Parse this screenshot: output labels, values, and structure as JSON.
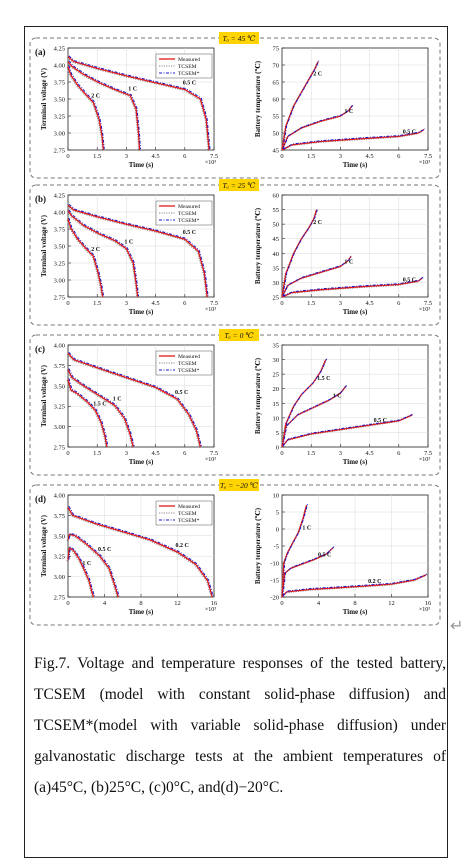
{
  "figure": {
    "caption": "Fig.7.  Voltage and temperature responses of the tested battery, TCSEM (model with constant solid-phase diffusion) and TCSEM*(model with variable solid-phase diffusion) under galvanostatic discharge tests at the ambient temperatures of (a)45°C, (b)25°C, (c)0°C, and(d)−20°C.",
    "paragraph_mark": "↵"
  },
  "colors": {
    "measured": "#e01818",
    "tcsem": "#8a8a8a",
    "tcsem_star": "#1a1acc",
    "title_bg": "#ffd400",
    "panel_border": "#777777"
  },
  "chart_data": [
    {
      "panel": "(a)",
      "title": "Tₐ = 45 ℃",
      "ambient": "45 ℃",
      "legend": [
        "Measured",
        "TCSEM",
        "TCSEM*"
      ],
      "voltage": {
        "type": "line",
        "xlabel": "Time (s)",
        "ylabel": "Terminal voltage (V)",
        "x_multiplier": "×10³",
        "xlim": [
          0,
          7.5
        ],
        "ylim": [
          2.75,
          4.25
        ],
        "xticks": [
          0,
          1.5,
          3,
          4.5,
          6,
          7.5
        ],
        "yticks": [
          2.75,
          3.0,
          3.25,
          3.5,
          3.75,
          4.0,
          4.25
        ],
        "series": [
          {
            "label": "0.5 C",
            "x": [
              0,
              0.3,
              1.5,
              3,
              4.5,
              6,
              6.8,
              7.1,
              7.25
            ],
            "y": [
              4.12,
              4.05,
              3.95,
              3.84,
              3.74,
              3.64,
              3.5,
              3.2,
              2.75
            ]
          },
          {
            "label": "1 C",
            "x": [
              0,
              0.2,
              0.8,
              1.6,
              2.4,
              3.2,
              3.5,
              3.62,
              3.68
            ],
            "y": [
              4.05,
              3.98,
              3.86,
              3.74,
              3.64,
              3.55,
              3.35,
              3.0,
              2.75
            ]
          },
          {
            "label": "2 C",
            "x": [
              0,
              0.15,
              0.5,
              0.9,
              1.3,
              1.6,
              1.75,
              1.82
            ],
            "y": [
              3.98,
              3.85,
              3.7,
              3.57,
              3.45,
              3.2,
              2.95,
              2.75
            ]
          }
        ]
      },
      "temperature": {
        "type": "line",
        "xlabel": "Time (s)",
        "ylabel": "Battery temperature (℃)",
        "x_multiplier": "×10³",
        "xlim": [
          0,
          7.5
        ],
        "ylim": [
          45,
          75
        ],
        "xticks": [
          0,
          1.5,
          3,
          4.5,
          6,
          7.5
        ],
        "yticks": [
          45,
          50,
          55,
          60,
          65,
          70,
          75
        ],
        "series": [
          {
            "label": "2 C",
            "x": [
              0,
              0.2,
              0.6,
              1.0,
              1.4,
              1.7,
              1.85
            ],
            "y": [
              45,
              52,
              58,
              62,
              66,
              69,
              71
            ]
          },
          {
            "label": "1 C",
            "x": [
              0,
              0.3,
              1.0,
              2.0,
              3.0,
              3.4,
              3.6
            ],
            "y": [
              45,
              49,
              51.5,
              53.5,
              55,
              56.5,
              58
            ]
          },
          {
            "label": "0.5 C",
            "x": [
              0,
              0.5,
              2,
              4,
              6,
              7,
              7.3
            ],
            "y": [
              45,
              46.5,
              47.5,
              48.3,
              49,
              50,
              51
            ]
          }
        ]
      }
    },
    {
      "panel": "(b)",
      "title": "Tₐ = 25 ℃",
      "ambient": "25 ℃",
      "legend": [
        "Measured",
        "TCSEM",
        "TCSEM*"
      ],
      "voltage": {
        "type": "line",
        "xlabel": "Time (s)",
        "ylabel": "Terminal voltage (V)",
        "x_multiplier": "×10³",
        "xlim": [
          0,
          7.5
        ],
        "ylim": [
          2.75,
          4.25
        ],
        "xticks": [
          0,
          1.5,
          3,
          4.5,
          6,
          7.5
        ],
        "yticks": [
          2.75,
          3.0,
          3.25,
          3.5,
          3.75,
          4.0,
          4.25
        ],
        "series": [
          {
            "label": "0.5 C",
            "x": [
              0,
              0.3,
              1.5,
              3,
              4.5,
              6,
              6.7,
              7.0,
              7.15
            ],
            "y": [
              4.1,
              4.03,
              3.93,
              3.82,
              3.72,
              3.6,
              3.42,
              3.1,
              2.75
            ]
          },
          {
            "label": "1 C",
            "x": [
              0,
              0.2,
              0.8,
              1.6,
              2.4,
              3.0,
              3.35,
              3.5,
              3.58
            ],
            "y": [
              4.02,
              3.94,
              3.8,
              3.68,
              3.58,
              3.46,
              3.25,
              2.95,
              2.75
            ]
          },
          {
            "label": "2 C",
            "x": [
              0,
              0.15,
              0.5,
              0.9,
              1.3,
              1.55,
              1.7,
              1.78
            ],
            "y": [
              3.9,
              3.76,
              3.6,
              3.47,
              3.35,
              3.1,
              2.9,
              2.75
            ]
          }
        ]
      },
      "temperature": {
        "type": "line",
        "xlabel": "Time (s)",
        "ylabel": "Battery temperature (℃)",
        "x_multiplier": "×10³",
        "xlim": [
          0,
          7.5
        ],
        "ylim": [
          25,
          60
        ],
        "xticks": [
          0,
          1.5,
          3,
          4.5,
          6,
          7.5
        ],
        "yticks": [
          25,
          30,
          35,
          40,
          45,
          50,
          55,
          60
        ],
        "series": [
          {
            "label": "2 C",
            "x": [
              0,
              0.2,
              0.6,
              1.0,
              1.4,
              1.65,
              1.78
            ],
            "y": [
              25,
              33,
              40,
              45,
              49,
              52,
              55
            ]
          },
          {
            "label": "1 C",
            "x": [
              0,
              0.3,
              1.0,
              2.0,
              3.0,
              3.4,
              3.55
            ],
            "y": [
              25,
              29,
              31.5,
              33.5,
              35.5,
              37.5,
              39
            ]
          },
          {
            "label": "0.5 C",
            "x": [
              0,
              0.5,
              2,
              4,
              6,
              7,
              7.2
            ],
            "y": [
              25,
              26.5,
              27.5,
              28.5,
              29.3,
              30.5,
              31.5
            ]
          }
        ]
      }
    },
    {
      "panel": "(c)",
      "title": "Tₐ = 0 ℃",
      "ambient": "0 ℃",
      "legend": [
        "Measured",
        "TCSEM",
        "TCSEM*"
      ],
      "voltage": {
        "type": "line",
        "xlabel": "Time (s)",
        "ylabel": "Terminal voltage (V)",
        "x_multiplier": "×10³",
        "xlim": [
          0,
          7.5
        ],
        "ylim": [
          2.75,
          4.0
        ],
        "xticks": [
          0,
          1.5,
          3,
          4.5,
          6,
          7.5
        ],
        "yticks": [
          2.75,
          3.0,
          3.25,
          3.5,
          3.75,
          4.0
        ],
        "series": [
          {
            "label": "0.5 C",
            "x": [
              0,
              0.3,
              1.5,
              3,
              4.5,
              5.6,
              6.2,
              6.6,
              6.8
            ],
            "y": [
              3.9,
              3.82,
              3.72,
              3.6,
              3.48,
              3.34,
              3.15,
              2.95,
              2.75
            ]
          },
          {
            "label": "1 C",
            "x": [
              0,
              0.2,
              0.8,
              1.6,
              2.4,
              2.9,
              3.2,
              3.35
            ],
            "y": [
              3.7,
              3.6,
              3.5,
              3.38,
              3.26,
              3.1,
              2.9,
              2.75
            ]
          },
          {
            "label": "1.5 C",
            "x": [
              0,
              0.15,
              0.5,
              1.0,
              1.4,
              1.7,
              1.9,
              2.0
            ],
            "y": [
              3.58,
              3.45,
              3.4,
              3.3,
              3.2,
              3.05,
              2.88,
              2.75
            ]
          }
        ]
      },
      "temperature": {
        "type": "line",
        "xlabel": "Time (s)",
        "ylabel": "Battery temperature (℃)",
        "x_multiplier": "×10³",
        "xlim": [
          0,
          7.5
        ],
        "ylim": [
          0,
          35
        ],
        "xticks": [
          0,
          1.5,
          3,
          4.5,
          6,
          7.5
        ],
        "yticks": [
          0,
          5,
          10,
          15,
          20,
          25,
          30,
          35
        ],
        "series": [
          {
            "label": "1.5 C",
            "x": [
              0,
              0.2,
              0.6,
              1.0,
              1.6,
              2.0,
              2.25
            ],
            "y": [
              0,
              8,
              14,
              18,
              22,
              26,
              30
            ]
          },
          {
            "label": "1 C",
            "x": [
              0,
              0.2,
              0.8,
              1.6,
              2.4,
              3.0,
              3.3
            ],
            "y": [
              0,
              7,
              11,
              13.5,
              16,
              18.5,
              21
            ]
          },
          {
            "label": "0.5 C",
            "x": [
              0,
              0.3,
              1.5,
              3,
              4.5,
              6,
              6.7
            ],
            "y": [
              0,
              2.5,
              4.5,
              6,
              7.5,
              9,
              11
            ]
          }
        ]
      }
    },
    {
      "panel": "(d)",
      "title": "Tₐ = −20 ℃",
      "ambient": "−20 ℃",
      "legend": [
        "Measured",
        "TCSEM",
        "TCSEM*"
      ],
      "voltage": {
        "type": "line",
        "xlabel": "Time (s)",
        "ylabel": "Terminal voltage (V)",
        "x_multiplier": "×10³",
        "xlim": [
          0,
          16
        ],
        "ylim": [
          2.75,
          4.0
        ],
        "xticks": [
          0,
          4,
          8,
          12,
          16
        ],
        "yticks": [
          2.75,
          3.0,
          3.25,
          3.5,
          3.75,
          4.0
        ],
        "series": [
          {
            "label": "0.2 C",
            "x": [
              0,
              0.5,
              3,
              6,
              9,
              12,
              14,
              15.3,
              15.8
            ],
            "y": [
              3.85,
              3.75,
              3.65,
              3.55,
              3.45,
              3.3,
              3.15,
              2.95,
              2.75
            ]
          },
          {
            "label": "0.5 C",
            "x": [
              0,
              0.2,
              0.8,
              2,
              3.5,
              4.5,
              5.1,
              5.5
            ],
            "y": [
              3.45,
              3.52,
              3.5,
              3.4,
              3.25,
              3.1,
              2.9,
              2.75
            ]
          },
          {
            "label": "1 C",
            "x": [
              0,
              0.15,
              0.6,
              1.2,
              1.8,
              2.3,
              2.6,
              2.8
            ],
            "y": [
              3.2,
              3.35,
              3.32,
              3.22,
              3.08,
              2.95,
              2.82,
              2.75
            ]
          }
        ]
      },
      "temperature": {
        "type": "line",
        "xlabel": "Time (s)",
        "ylabel": "Battery temperature (℃)",
        "x_multiplier": "×10³",
        "xlim": [
          0,
          16
        ],
        "ylim": [
          -20,
          10
        ],
        "xticks": [
          0,
          4,
          8,
          12,
          16
        ],
        "yticks": [
          -20,
          -15,
          -10,
          -5,
          0,
          5,
          10
        ],
        "series": [
          {
            "label": "1 C",
            "x": [
              0,
              0.2,
              0.6,
              1.2,
              1.8,
              2.3,
              2.7
            ],
            "y": [
              -20,
              -10,
              -7,
              -4,
              -1,
              3,
              7
            ]
          },
          {
            "label": "0.5 C",
            "x": [
              0,
              0.3,
              1,
              2,
              3.5,
              4.8,
              5.6
            ],
            "y": [
              -20,
              -13,
              -11.5,
              -10.5,
              -9,
              -7.5,
              -5.5
            ]
          },
          {
            "label": "0.2 C",
            "x": [
              0,
              0.5,
              3,
              6,
              9,
              12,
              14.5,
              15.8
            ],
            "y": [
              -20,
              -18.5,
              -17.8,
              -17.3,
              -16.8,
              -16.2,
              -15,
              -13.5
            ]
          }
        ]
      }
    }
  ]
}
